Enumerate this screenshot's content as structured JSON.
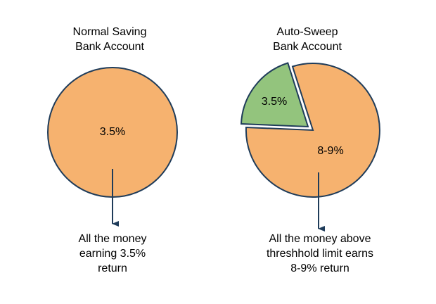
{
  "panels": [
    {
      "title": [
        "Normal Saving",
        "Bank Account"
      ],
      "slices": [
        "3.5%"
      ],
      "caption": [
        "All the money",
        "earning 3.5%",
        "return"
      ]
    },
    {
      "title": [
        "Auto-Sweep",
        "Bank Account"
      ],
      "slices": [
        "3.5%",
        "8-9%"
      ],
      "caption": [
        "All the money above",
        "threshhold limit earns",
        "8-9% return"
      ]
    }
  ]
}
